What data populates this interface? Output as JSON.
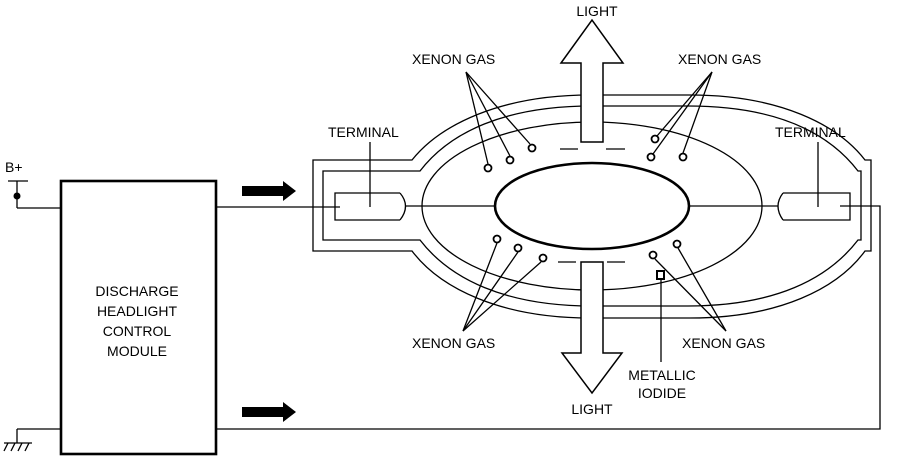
{
  "labels": {
    "supply": "B+",
    "module_line1": "DISCHARGE",
    "module_line2": "HEADLIGHT",
    "module_line3": "CONTROL",
    "module_line4": "MODULE",
    "terminal_left": "TERMINAL",
    "terminal_right": "TERMINAL",
    "light_top": "LIGHT",
    "light_bottom": "LIGHT",
    "xenon_top_left": "XENON GAS",
    "xenon_top_right": "XENON GAS",
    "xenon_bottom_left": "XENON GAS",
    "xenon_bottom_right": "XENON GAS",
    "metallic_line1": "METALLIC",
    "metallic_line2": "IODIDE"
  },
  "colors": {
    "stroke": "#000000",
    "background": "#ffffff"
  }
}
